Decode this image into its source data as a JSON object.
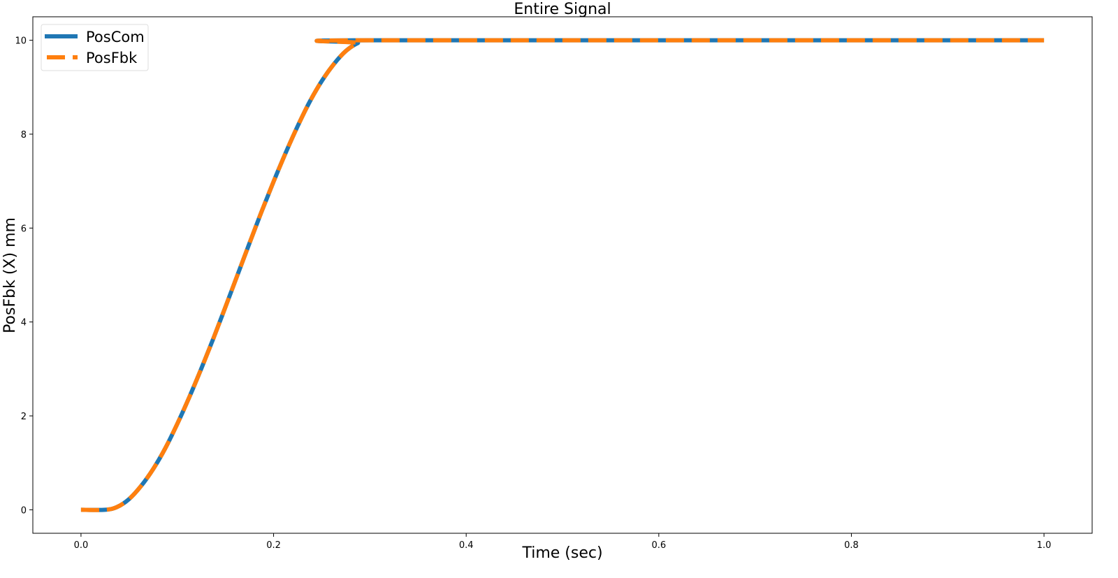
{
  "chart_data": {
    "type": "line",
    "title": "Entire Signal",
    "xlabel": "Time (sec)",
    "ylabel": "PosFbk (X) mm",
    "xlim": [
      -0.05,
      1.05
    ],
    "ylim": [
      -0.5,
      10.5
    ],
    "xticks": [
      "0.0",
      "0.2",
      "0.4",
      "0.6",
      "0.8",
      "1.0"
    ],
    "yticks": [
      "0",
      "2",
      "4",
      "6",
      "8",
      "10"
    ],
    "grid": false,
    "legend_position": "top-left",
    "x": [
      0.0,
      0.025,
      0.0375,
      0.05,
      0.0625,
      0.075,
      0.0875,
      0.1,
      0.1125,
      0.125,
      0.1375,
      0.15,
      0.1625,
      0.175,
      0.1875,
      0.2,
      0.2125,
      0.225,
      0.2375,
      0.25,
      0.2625,
      0.275,
      0.2875,
      0.3,
      1.0
    ],
    "series": [
      {
        "name": "PosCom",
        "color": "#1f77b4",
        "style": "solid",
        "values": [
          0,
          0,
          0.06,
          0.23,
          0.51,
          0.87,
          1.31,
          1.83,
          2.4,
          3.01,
          3.65,
          4.32,
          5.0,
          5.68,
          6.35,
          6.99,
          7.6,
          8.17,
          8.69,
          9.13,
          9.49,
          9.77,
          9.94,
          10,
          10
        ]
      },
      {
        "name": "PosFbk",
        "color": "#ff7f0e",
        "style": "dashed",
        "values": [
          0,
          0,
          0.06,
          0.23,
          0.51,
          0.87,
          1.31,
          1.83,
          2.4,
          3.01,
          3.65,
          4.32,
          5.0,
          5.68,
          6.35,
          6.99,
          7.6,
          8.17,
          8.69,
          9.13,
          9.49,
          9.77,
          9.94,
          10,
          10
        ]
      }
    ]
  }
}
